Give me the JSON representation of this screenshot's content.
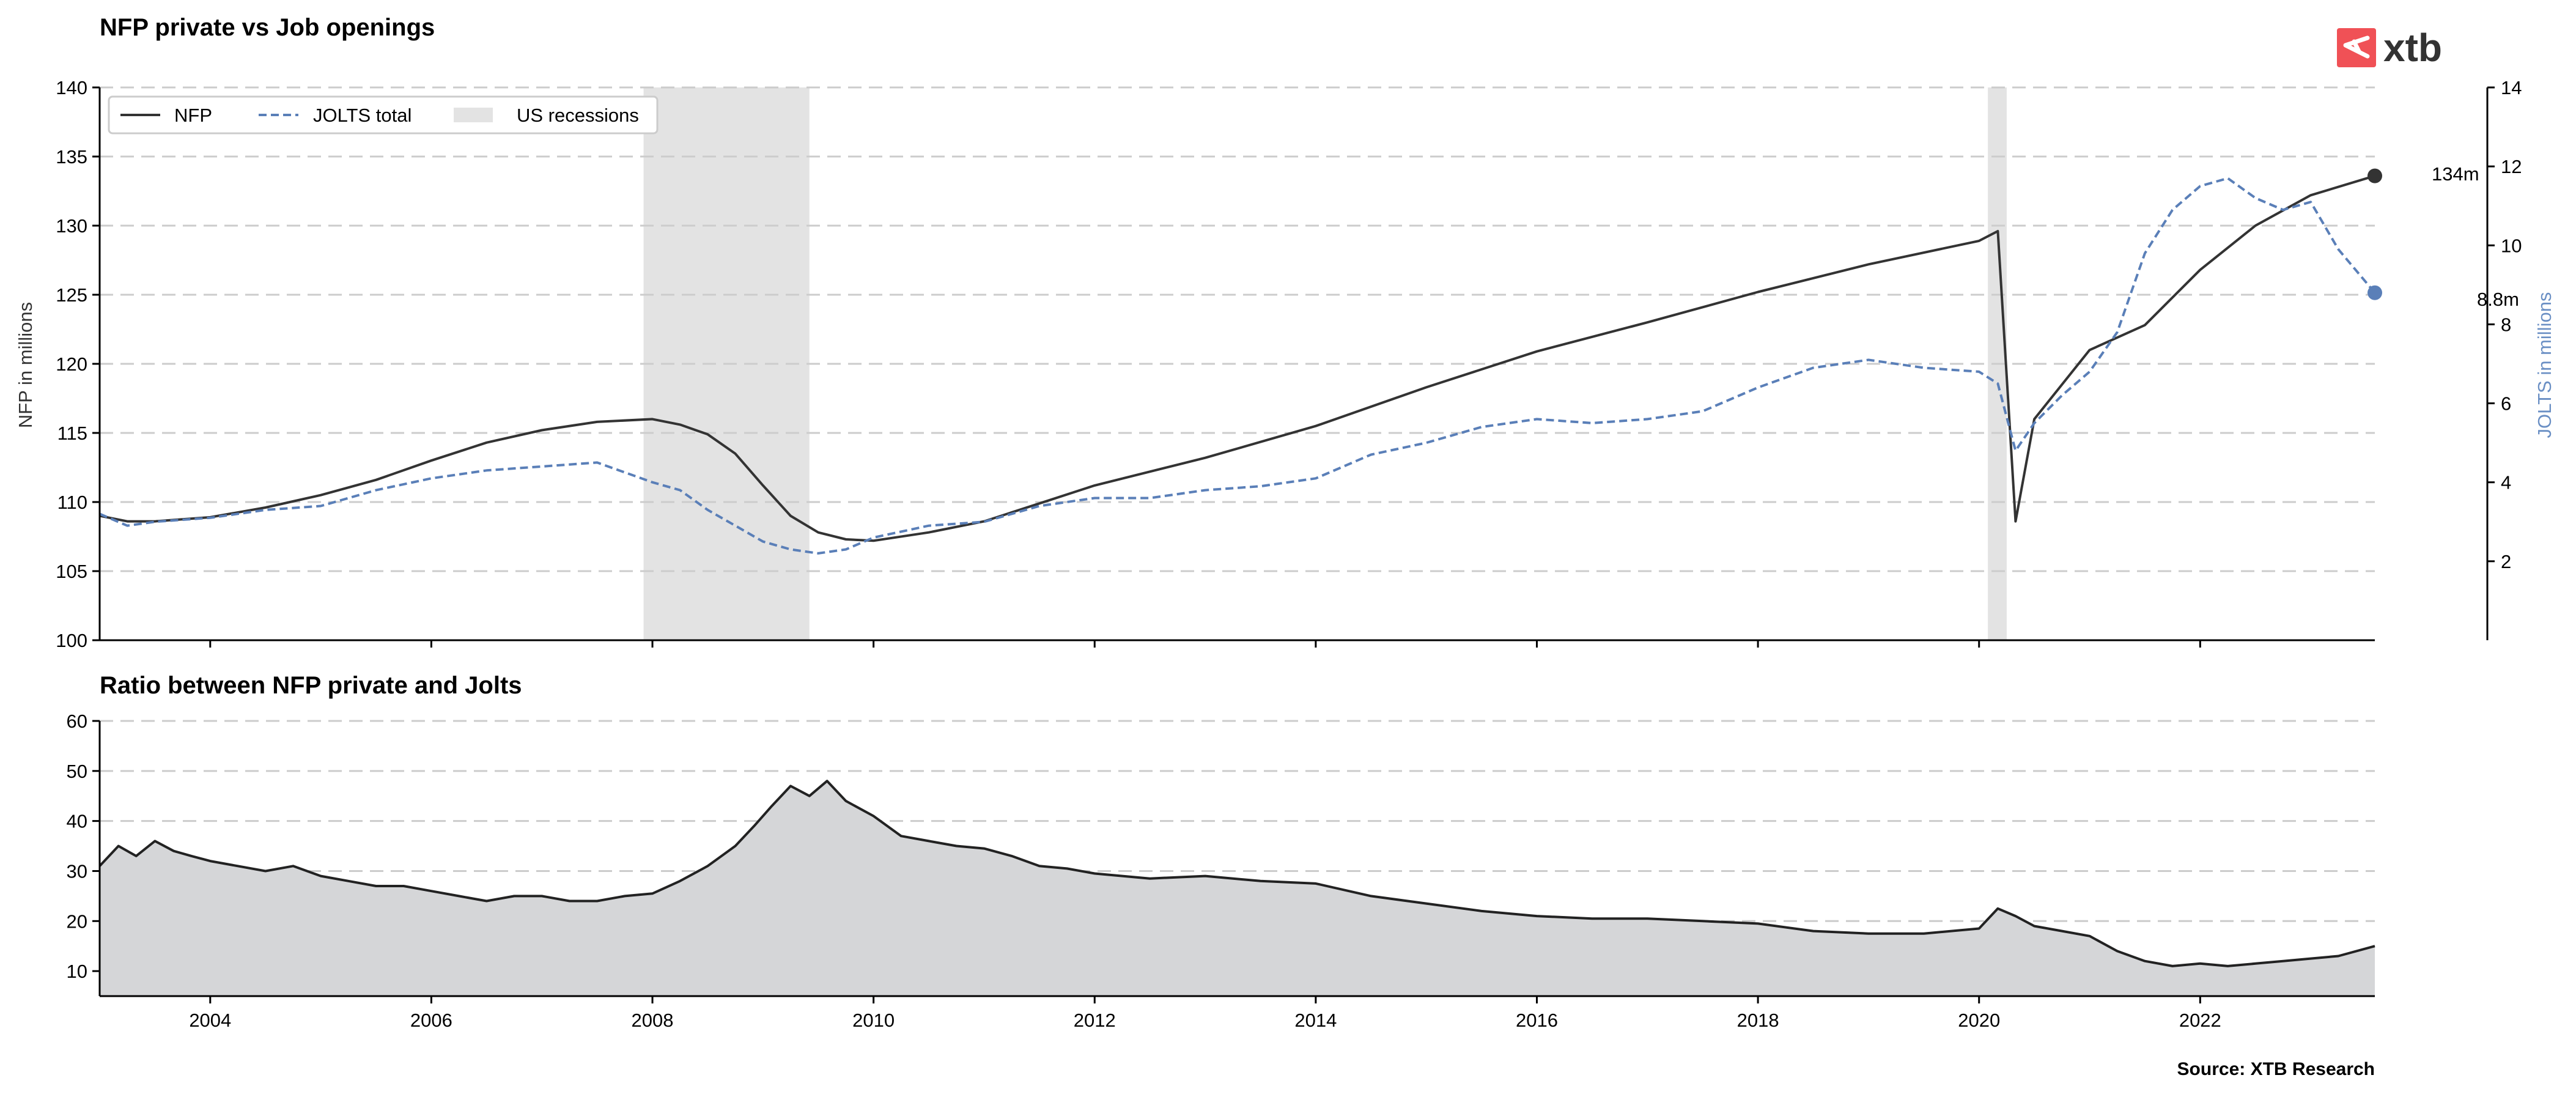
{
  "brand": {
    "logo_text": "xtb",
    "accent_color": "#f05156"
  },
  "source": "Source: XTB Research",
  "colors": {
    "nfp": "#333333",
    "jolts": "#5a7fb8",
    "recession": "#e3e3e3",
    "ratio_fill": "#d5d6d8",
    "ratio_line": "#222222"
  },
  "chart_data": [
    {
      "type": "line",
      "title": "NFP private vs Job openings",
      "ylabel_left": "NFP in millions",
      "ylabel_right": "JOLTS in millions",
      "x_range": [
        2003.0,
        2023.58
      ],
      "x_ticks": [
        "2004",
        "2006",
        "2008",
        "2010",
        "2012",
        "2014",
        "2016",
        "2018",
        "2020",
        "2022"
      ],
      "y_left_ticks": [
        "100",
        "105",
        "110",
        "115",
        "120",
        "125",
        "130",
        "135",
        "140"
      ],
      "y_left_range": [
        100,
        140
      ],
      "y_right_ticks": [
        "2",
        "4",
        "6",
        "8",
        "10",
        "12",
        "14"
      ],
      "y_right_range": [
        0,
        14
      ],
      "legend": {
        "position": "top-left",
        "items": [
          "NFP",
          "JOLTS total",
          "US recessions"
        ]
      },
      "grid": "horizontal dashed",
      "recessions": [
        [
          2007.92,
          2009.42
        ],
        [
          2020.08,
          2020.25
        ]
      ],
      "end_labels": {
        "nfp": "134m",
        "jolts": "8.8m"
      },
      "series": [
        {
          "name": "NFP",
          "axis": "left",
          "style": "solid",
          "x": [
            2003.0,
            2003.25,
            2003.5,
            2004.0,
            2004.5,
            2005.0,
            2005.5,
            2006.0,
            2006.5,
            2007.0,
            2007.5,
            2008.0,
            2008.25,
            2008.5,
            2008.75,
            2009.0,
            2009.25,
            2009.5,
            2009.75,
            2010.0,
            2010.5,
            2011.0,
            2011.5,
            2012.0,
            2013.0,
            2014.0,
            2015.0,
            2016.0,
            2017.0,
            2018.0,
            2019.0,
            2020.0,
            2020.17,
            2020.33,
            2020.5,
            2020.75,
            2021.0,
            2021.5,
            2022.0,
            2022.5,
            2023.0,
            2023.58
          ],
          "y": [
            109.0,
            108.6,
            108.6,
            108.9,
            109.6,
            110.5,
            111.6,
            113.0,
            114.3,
            115.2,
            115.8,
            116.0,
            115.6,
            114.9,
            113.5,
            111.2,
            109.0,
            107.8,
            107.3,
            107.2,
            107.8,
            108.6,
            109.9,
            111.2,
            113.2,
            115.5,
            118.3,
            120.9,
            123.0,
            125.2,
            127.2,
            128.9,
            129.6,
            108.6,
            116.0,
            118.5,
            121.0,
            122.8,
            126.8,
            130.0,
            132.2,
            133.6
          ]
        },
        {
          "name": "JOLTS total",
          "axis": "right",
          "style": "dashed",
          "x": [
            2003.0,
            2003.25,
            2003.5,
            2004.0,
            2004.5,
            2005.0,
            2005.5,
            2006.0,
            2006.5,
            2007.0,
            2007.5,
            2008.0,
            2008.25,
            2008.5,
            2008.75,
            2009.0,
            2009.25,
            2009.5,
            2009.75,
            2010.0,
            2010.5,
            2011.0,
            2011.5,
            2012.0,
            2012.5,
            2013.0,
            2013.5,
            2014.0,
            2014.5,
            2015.0,
            2015.5,
            2016.0,
            2016.5,
            2017.0,
            2017.5,
            2018.0,
            2018.5,
            2019.0,
            2019.5,
            2020.0,
            2020.17,
            2020.33,
            2020.5,
            2020.75,
            2021.0,
            2021.25,
            2021.5,
            2021.75,
            2022.0,
            2022.25,
            2022.5,
            2022.75,
            2023.0,
            2023.25,
            2023.58
          ],
          "y": [
            3.2,
            2.9,
            3.0,
            3.1,
            3.3,
            3.4,
            3.8,
            4.1,
            4.3,
            4.4,
            4.5,
            4.0,
            3.8,
            3.3,
            2.9,
            2.5,
            2.3,
            2.2,
            2.3,
            2.6,
            2.9,
            3.0,
            3.4,
            3.6,
            3.6,
            3.8,
            3.9,
            4.1,
            4.7,
            5.0,
            5.4,
            5.6,
            5.5,
            5.6,
            5.8,
            6.4,
            6.9,
            7.1,
            6.9,
            6.8,
            6.5,
            4.8,
            5.5,
            6.2,
            6.8,
            7.8,
            9.8,
            10.9,
            11.5,
            11.7,
            11.2,
            10.9,
            11.1,
            9.9,
            8.8
          ]
        }
      ]
    },
    {
      "type": "area",
      "title": "Ratio between NFP private and Jolts",
      "x_range": [
        2003.0,
        2023.58
      ],
      "x_ticks": [
        "2004",
        "2006",
        "2008",
        "2010",
        "2012",
        "2014",
        "2016",
        "2018",
        "2020",
        "2022"
      ],
      "y_ticks": [
        "10",
        "20",
        "30",
        "40",
        "50",
        "60"
      ],
      "y_range": [
        5,
        60
      ],
      "grid": "horizontal dashed",
      "series": [
        {
          "name": "Ratio",
          "x": [
            2003.0,
            2003.17,
            2003.33,
            2003.5,
            2003.67,
            2003.83,
            2004.0,
            2004.25,
            2004.5,
            2004.75,
            2005.0,
            2005.25,
            2005.5,
            2005.75,
            2006.0,
            2006.25,
            2006.5,
            2006.75,
            2007.0,
            2007.25,
            2007.5,
            2007.75,
            2008.0,
            2008.25,
            2008.5,
            2008.75,
            2008.92,
            2009.08,
            2009.25,
            2009.42,
            2009.58,
            2009.75,
            2010.0,
            2010.25,
            2010.5,
            2010.75,
            2011.0,
            2011.25,
            2011.5,
            2011.75,
            2012.0,
            2012.5,
            2013.0,
            2013.5,
            2014.0,
            2014.5,
            2015.0,
            2015.5,
            2016.0,
            2016.5,
            2017.0,
            2017.5,
            2018.0,
            2018.5,
            2019.0,
            2019.5,
            2020.0,
            2020.17,
            2020.33,
            2020.5,
            2020.75,
            2021.0,
            2021.25,
            2021.5,
            2021.75,
            2022.0,
            2022.25,
            2022.5,
            2022.75,
            2023.0,
            2023.25,
            2023.58
          ],
          "y": [
            31.0,
            35.0,
            33.0,
            36.0,
            34.0,
            33.0,
            32.0,
            31.0,
            30.0,
            31.0,
            29.0,
            28.0,
            27.0,
            27.0,
            26.0,
            25.0,
            24.0,
            25.0,
            25.0,
            24.0,
            24.0,
            25.0,
            25.5,
            28.0,
            31.0,
            35.0,
            39.0,
            43.0,
            47.0,
            45.0,
            48.0,
            44.0,
            41.0,
            37.0,
            36.0,
            35.0,
            34.5,
            33.0,
            31.0,
            30.5,
            29.5,
            28.5,
            29.0,
            28.0,
            27.5,
            25.0,
            23.5,
            22.0,
            21.0,
            20.5,
            20.5,
            20.0,
            19.5,
            18.0,
            17.5,
            17.5,
            18.5,
            22.5,
            21.0,
            19.0,
            18.0,
            17.0,
            14.0,
            12.0,
            11.0,
            11.5,
            11.0,
            11.5,
            12.0,
            12.5,
            13.0,
            15.0
          ]
        }
      ]
    }
  ]
}
